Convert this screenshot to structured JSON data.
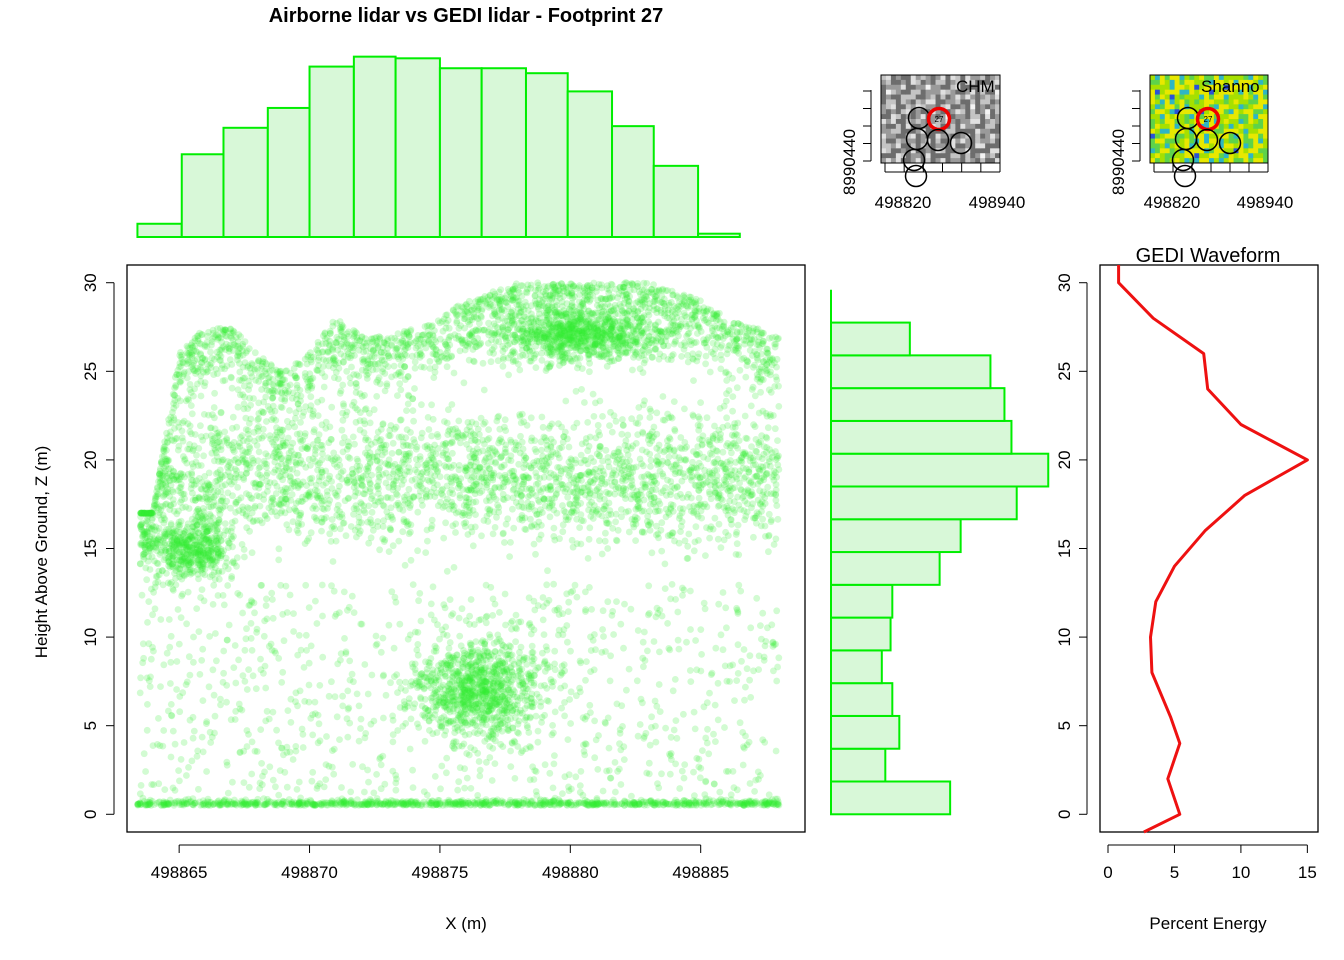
{
  "chart_data": [
    {
      "id": "main-scatter",
      "type": "scatter",
      "title": "Airborne lidar vs GEDI lidar - Footprint 27",
      "xlabel": "X (m)",
      "ylabel": "Height Above Ground, Z (m)",
      "xlim": [
        498863,
        498889
      ],
      "ylim": [
        -1,
        31
      ],
      "xticks": [
        498865,
        498870,
        498875,
        498880,
        498885
      ],
      "yticks": [
        0,
        5,
        10,
        15,
        20,
        25,
        30
      ],
      "point_color": "#33ee33",
      "grid": false,
      "canopy_profile": [
        {
          "x": 498864,
          "top": 17
        },
        {
          "x": 498865,
          "top": 26
        },
        {
          "x": 498866,
          "top": 27.5
        },
        {
          "x": 498867,
          "top": 27.5
        },
        {
          "x": 498868,
          "top": 26
        },
        {
          "x": 498869,
          "top": 25
        },
        {
          "x": 498870,
          "top": 26
        },
        {
          "x": 498871,
          "top": 28
        },
        {
          "x": 498872,
          "top": 27
        },
        {
          "x": 498873,
          "top": 27
        },
        {
          "x": 498874,
          "top": 27.5
        },
        {
          "x": 498875,
          "top": 28
        },
        {
          "x": 498876,
          "top": 29
        },
        {
          "x": 498877,
          "top": 29.5
        },
        {
          "x": 498878,
          "top": 30
        },
        {
          "x": 498879,
          "top": 30
        },
        {
          "x": 498880,
          "top": 30
        },
        {
          "x": 498881,
          "top": 30
        },
        {
          "x": 498882,
          "top": 30
        },
        {
          "x": 498883,
          "top": 30
        },
        {
          "x": 498884,
          "top": 29.5
        },
        {
          "x": 498885,
          "top": 29
        },
        {
          "x": 498886,
          "top": 28
        },
        {
          "x": 498887,
          "top": 27.5
        },
        {
          "x": 498888,
          "top": 27
        }
      ]
    },
    {
      "id": "x-histogram",
      "type": "bar",
      "orientation": "vertical",
      "bin_edges": [
        498863.4,
        498865.1,
        498866.7,
        498868.4,
        498870.0,
        498871.7,
        498873.3,
        498875.0,
        498876.6,
        498878.3,
        498879.9,
        498881.6,
        498883.2,
        498884.9,
        498886.5
      ],
      "counts": [
        8,
        50,
        66,
        78,
        103,
        109,
        108,
        102,
        102,
        99,
        88,
        67,
        43,
        2
      ],
      "count_max": 110,
      "fill": "#d8f8d8",
      "stroke": "#00ee00"
    },
    {
      "id": "z-histogram",
      "type": "bar",
      "orientation": "horizontal",
      "bin_edges": [
        0,
        1.85,
        3.7,
        5.55,
        7.4,
        9.25,
        11.1,
        12.95,
        14.8,
        16.65,
        18.5,
        20.35,
        22.2,
        24.05,
        25.9,
        27.75,
        29.6
      ],
      "counts": [
        68,
        31,
        39,
        35,
        29,
        34,
        35,
        62,
        74,
        106,
        124,
        103,
        99,
        91,
        45,
        0
      ],
      "count_max": 125,
      "fill": "#d8f8d8",
      "stroke": "#00ee00"
    },
    {
      "id": "gedi-waveform",
      "type": "line",
      "title": "GEDI Waveform",
      "xlabel": "Percent Energy",
      "ylabel": "",
      "xlim": [
        0,
        15.5
      ],
      "ylim": [
        -1,
        31
      ],
      "xticks": [
        0,
        5,
        10,
        15
      ],
      "yticks": [
        0,
        5,
        10,
        15,
        20,
        25,
        30
      ],
      "line_color": "#ee1111",
      "points": [
        {
          "energy": 2.7,
          "z": -1
        },
        {
          "energy": 5.4,
          "z": 0
        },
        {
          "energy": 4.5,
          "z": 2
        },
        {
          "energy": 5.4,
          "z": 4
        },
        {
          "energy": 4.7,
          "z": 5.5
        },
        {
          "energy": 3.3,
          "z": 8
        },
        {
          "energy": 3.2,
          "z": 10
        },
        {
          "energy": 3.6,
          "z": 12
        },
        {
          "energy": 5.0,
          "z": 14
        },
        {
          "energy": 7.3,
          "z": 16
        },
        {
          "energy": 10.3,
          "z": 18
        },
        {
          "energy": 15.0,
          "z": 20
        },
        {
          "energy": 10.0,
          "z": 22
        },
        {
          "energy": 7.5,
          "z": 24
        },
        {
          "energy": 7.2,
          "z": 26
        },
        {
          "energy": 3.4,
          "z": 28
        },
        {
          "energy": 0.8,
          "z": 30
        },
        {
          "energy": 0.8,
          "z": 31
        }
      ]
    },
    {
      "id": "inset-chm",
      "type": "heatmap",
      "label": "CHM",
      "xticks": [
        "498820",
        "498940"
      ],
      "yticks": [
        "8990440"
      ],
      "palette": [
        "#6d6d6d",
        "#9a9a9a",
        "#c4c4c4",
        "#e0e0e0",
        "#f4f4f4"
      ],
      "highlight_label": "27",
      "highlight_color": "#ee0000"
    },
    {
      "id": "inset-shannon",
      "type": "heatmap",
      "label": "Shanno",
      "xticks": [
        "498820",
        "498940"
      ],
      "yticks": [
        "8990440"
      ],
      "palette": [
        "#e8e800",
        "#a6e000",
        "#5ed34a",
        "#2fb6c4",
        "#2a52d8"
      ],
      "highlight_label": "27",
      "highlight_color": "#ee0000"
    }
  ]
}
